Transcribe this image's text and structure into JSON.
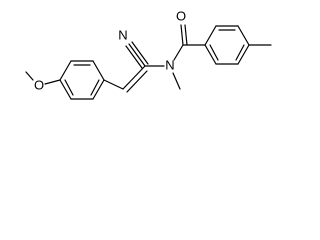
{
  "atoms": {
    "nitrile_nitrogen": "N",
    "amide_nitrogen": "N",
    "carbonyl_oxygen": "O",
    "methoxy_oxygen": "O"
  }
}
